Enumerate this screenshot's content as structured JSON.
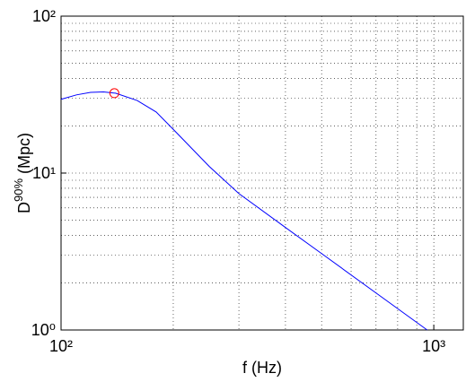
{
  "chart_data": {
    "type": "line",
    "xscale": "log",
    "yscale": "log",
    "grid": true,
    "xlabel": "f (Hz)",
    "ylabel": {
      "main": "D",
      "sup": "90%",
      "unit": "(Mpc)"
    },
    "xlim": [
      100,
      1200
    ],
    "ylim": [
      1,
      100
    ],
    "xticks": [
      {
        "value": 100,
        "label": "10²"
      },
      {
        "value": 1000,
        "label": "10³"
      }
    ],
    "yticks": [
      {
        "value": 1,
        "label": "10⁰"
      },
      {
        "value": 10,
        "label": "10¹"
      },
      {
        "value": 100,
        "label": "10²"
      }
    ],
    "xminorticks": [
      200,
      300,
      400,
      500,
      600,
      700,
      800,
      900
    ],
    "yminorticks": [
      2,
      3,
      4,
      5,
      6,
      7,
      8,
      9,
      20,
      30,
      40,
      50,
      60,
      70,
      80,
      90
    ],
    "series": [
      {
        "color": "#0000ff",
        "x": [
          100,
          110,
          120,
          130,
          140,
          160,
          180,
          200,
          250,
          300,
          400,
          500,
          700,
          960
        ],
        "values": [
          29.5,
          31.5,
          32.7,
          32.9,
          32.3,
          29,
          24.5,
          19,
          11,
          7.4,
          4.5,
          3.07,
          1.72,
          1
        ]
      }
    ],
    "marker": {
      "color": "#ff0000",
      "x": 139,
      "y": 32.3
    }
  }
}
